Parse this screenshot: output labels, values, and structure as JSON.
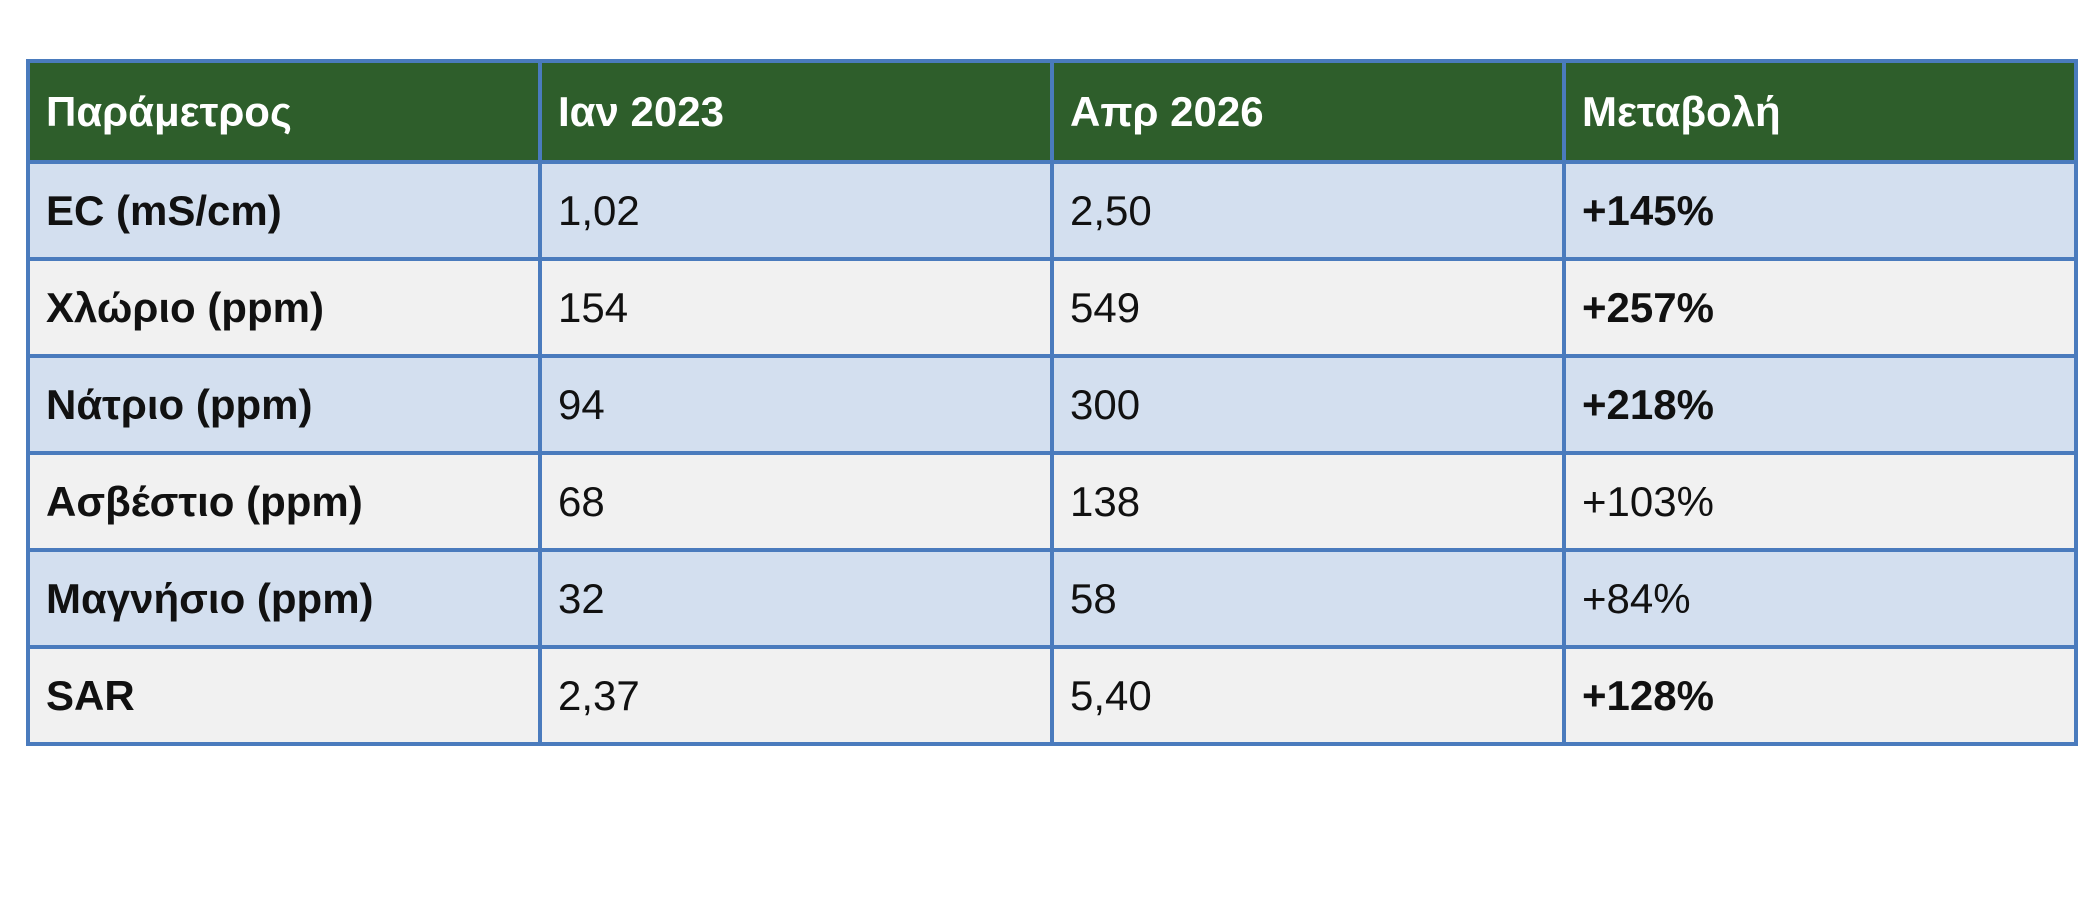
{
  "table": {
    "headers": [
      "Παράμετρος",
      "Ιαν 2023",
      "Απρ 2026",
      "Μεταβολή"
    ],
    "rows": [
      {
        "parameter": "EC (mS/cm)",
        "jan_2023": "1,02",
        "apr_2026": "2,50",
        "change": "+145%",
        "change_bold": true
      },
      {
        "parameter": "Χλώριο (ppm)",
        "jan_2023": "154",
        "apr_2026": "549",
        "change": "+257%",
        "change_bold": true
      },
      {
        "parameter": "Νάτριο (ppm)",
        "jan_2023": "94",
        "apr_2026": "300",
        "change": "+218%",
        "change_bold": true
      },
      {
        "parameter": "Ασβέστιο (ppm)",
        "jan_2023": "68",
        "apr_2026": "138",
        "change": "+103%",
        "change_bold": false
      },
      {
        "parameter": "Μαγνήσιο (ppm)",
        "jan_2023": "32",
        "apr_2026": "58",
        "change": "+84%",
        "change_bold": false
      },
      {
        "parameter": "SAR",
        "jan_2023": "2,37",
        "apr_2026": "5,40",
        "change": "+128%",
        "change_bold": true
      }
    ]
  },
  "colors": {
    "header_bg": "#2e5e2b",
    "header_text": "#ffffff",
    "row_odd_bg": "#d3dfef",
    "row_even_bg": "#f1f1f1",
    "border": "#4a7bbd"
  }
}
